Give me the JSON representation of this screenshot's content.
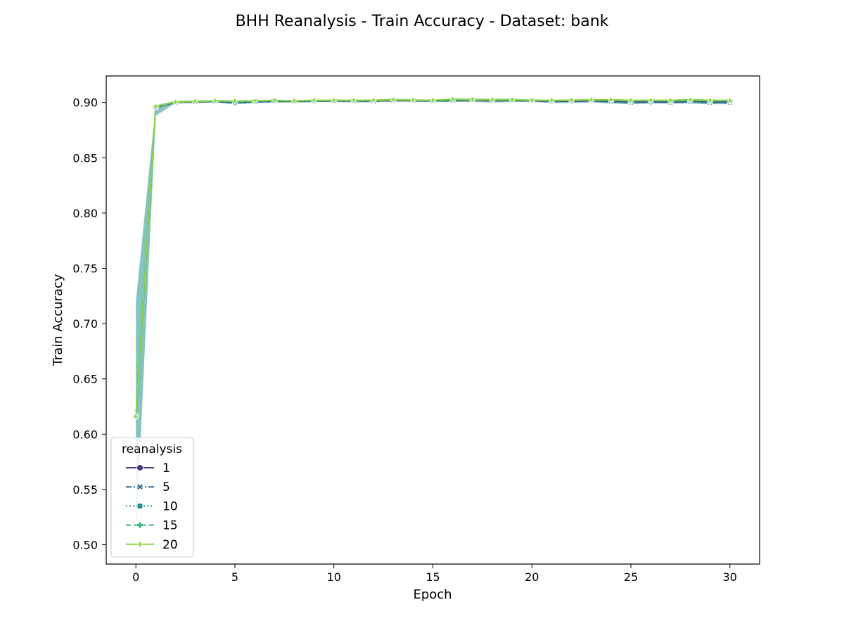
{
  "chart_data": {
    "type": "line",
    "title": "BHH Reanalysis - Train Accuracy - Dataset: bank",
    "xlabel": "Epoch",
    "ylabel": "Train Accuracy",
    "xlim": [
      -1.5,
      31.5
    ],
    "ylim": [
      0.4825,
      0.924
    ],
    "xticks": [
      0,
      5,
      10,
      15,
      20,
      25,
      30
    ],
    "yticks": [
      0.5,
      0.55,
      0.6,
      0.65,
      0.7,
      0.75,
      0.8,
      0.85,
      0.9
    ],
    "ytick_labels": [
      "0.50",
      "0.55",
      "0.60",
      "0.65",
      "0.70",
      "0.75",
      "0.80",
      "0.85",
      "0.90"
    ],
    "grid": false,
    "legend": {
      "title": "reanalysis",
      "position": "lower left"
    },
    "x": [
      0,
      1,
      2,
      3,
      4,
      5,
      6,
      7,
      8,
      9,
      10,
      11,
      12,
      13,
      14,
      15,
      16,
      17,
      18,
      19,
      20,
      21,
      22,
      23,
      24,
      25,
      26,
      27,
      28,
      29,
      30
    ],
    "band": {
      "color": "#21918c",
      "opacity": 0.55,
      "lower": [
        0.505,
        0.888,
        0.8995,
        0.8995,
        0.9,
        0.8985,
        0.8995,
        0.9,
        0.9,
        0.9005,
        0.9005,
        0.9,
        0.9005,
        0.901,
        0.9005,
        0.9005,
        0.9005,
        0.9005,
        0.9,
        0.9005,
        0.9005,
        0.8995,
        0.8995,
        0.9,
        0.899,
        0.8985,
        0.899,
        0.899,
        0.899,
        0.8985,
        0.8985
      ],
      "upper": [
        0.72,
        0.8975,
        0.9015,
        0.902,
        0.902,
        0.901,
        0.9015,
        0.9025,
        0.902,
        0.9025,
        0.9025,
        0.9025,
        0.9025,
        0.9035,
        0.903,
        0.9025,
        0.904,
        0.9035,
        0.9035,
        0.9035,
        0.9025,
        0.9025,
        0.9025,
        0.9035,
        0.9025,
        0.902,
        0.9025,
        0.9025,
        0.9035,
        0.9025,
        0.9025
      ]
    },
    "series": [
      {
        "name": "1",
        "color": "#443983",
        "dash": "solid",
        "marker": "circle",
        "values": [
          0.616,
          0.896,
          0.9,
          0.9005,
          0.901,
          0.8995,
          0.9005,
          0.901,
          0.901,
          0.901,
          0.9015,
          0.9015,
          0.9015,
          0.902,
          0.9015,
          0.9015,
          0.902,
          0.902,
          0.9015,
          0.902,
          0.9015,
          0.901,
          0.901,
          0.9015,
          0.901,
          0.9005,
          0.9005,
          0.9005,
          0.901,
          0.9005,
          0.9005
        ]
      },
      {
        "name": "5",
        "color": "#31688e",
        "dash": "dashdot",
        "marker": "x",
        "values": [
          0.616,
          0.8955,
          0.9,
          0.9005,
          0.901,
          0.8995,
          0.9005,
          0.901,
          0.901,
          0.901,
          0.9015,
          0.901,
          0.901,
          0.9015,
          0.9015,
          0.9015,
          0.9015,
          0.902,
          0.9015,
          0.9015,
          0.9015,
          0.901,
          0.901,
          0.9015,
          0.9005,
          0.9,
          0.9005,
          0.9,
          0.9005,
          0.9,
          0.9
        ]
      },
      {
        "name": "10",
        "color": "#21918c",
        "dash": "dotted",
        "marker": "square",
        "values": [
          0.616,
          0.896,
          0.9,
          0.9005,
          0.901,
          0.9,
          0.901,
          0.9015,
          0.901,
          0.9015,
          0.9015,
          0.9015,
          0.9015,
          0.902,
          0.902,
          0.9015,
          0.902,
          0.9025,
          0.902,
          0.902,
          0.902,
          0.9015,
          0.9015,
          0.902,
          0.9015,
          0.901,
          0.9015,
          0.901,
          0.9015,
          0.901,
          0.901
        ]
      },
      {
        "name": "15",
        "color": "#35b779",
        "dash": "dashed",
        "marker": "plus",
        "values": [
          0.616,
          0.8965,
          0.9005,
          0.901,
          0.9015,
          0.9005,
          0.901,
          0.9015,
          0.9015,
          0.9015,
          0.902,
          0.902,
          0.902,
          0.9025,
          0.902,
          0.902,
          0.9025,
          0.9025,
          0.9025,
          0.9025,
          0.902,
          0.902,
          0.902,
          0.9025,
          0.902,
          0.9015,
          0.902,
          0.9015,
          0.902,
          0.9015,
          0.9015
        ]
      },
      {
        "name": "20",
        "color": "#90d743",
        "dash": "solid",
        "marker": "diamond",
        "values": [
          0.616,
          0.8965,
          0.9005,
          0.901,
          0.9015,
          0.9015,
          0.9015,
          0.902,
          0.9015,
          0.902,
          0.902,
          0.902,
          0.902,
          0.9025,
          0.902,
          0.902,
          0.903,
          0.9025,
          0.9025,
          0.9025,
          0.902,
          0.902,
          0.902,
          0.9025,
          0.9025,
          0.902,
          0.902,
          0.902,
          0.9025,
          0.902,
          0.902
        ]
      }
    ]
  }
}
